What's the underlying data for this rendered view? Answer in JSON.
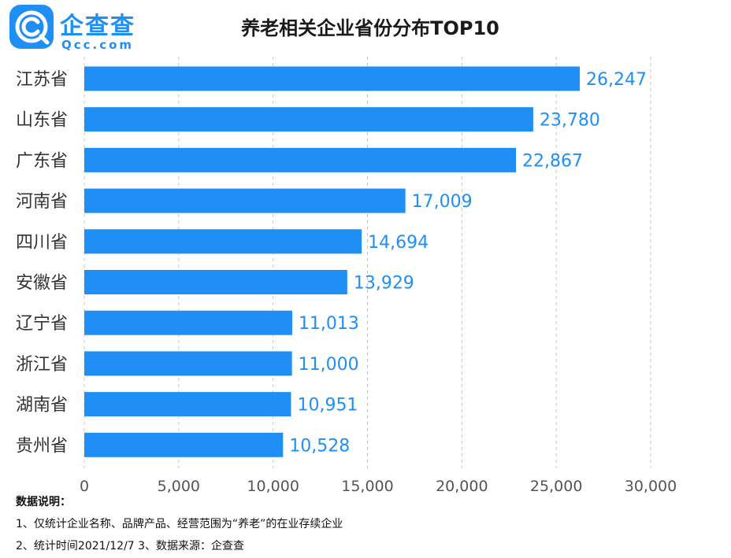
{
  "logo": {
    "name": "企查查",
    "domain": "Qcc.com",
    "icon": "qcc-logo-icon"
  },
  "chart_data": {
    "type": "bar",
    "orientation": "horizontal",
    "title": "养老相关企业省份分布TOP10",
    "categories": [
      "江苏省",
      "山东省",
      "广东省",
      "河南省",
      "四川省",
      "安徽省",
      "辽宁省",
      "浙江省",
      "湖南省",
      "贵州省"
    ],
    "values": [
      26247,
      23780,
      22867,
      17009,
      14694,
      13929,
      11013,
      11000,
      10951,
      10528
    ],
    "value_labels": [
      "26,247",
      "23,780",
      "22,867",
      "17,009",
      "14,694",
      "13,929",
      "11,013",
      "11,000",
      "10,951",
      "10,528"
    ],
    "xlim": [
      0,
      30000
    ],
    "x_ticks": [
      0,
      5000,
      10000,
      15000,
      20000,
      25000,
      30000
    ],
    "x_tick_labels": [
      "0",
      "5,000",
      "10,000",
      "15,000",
      "20,000",
      "25,000",
      "30,000"
    ],
    "grid": "vertical dashed",
    "bar_color": "#1f8ff5",
    "label_color": "#1f8ff5",
    "grid_color": "#c8c8c8",
    "axis_label_color": "#555555"
  },
  "notes": {
    "title": "数据说明：",
    "line1": "1、仅统计企业名称、品牌产品、经营范围为“养老”的在业存续企业",
    "line2": "2、统计时间2021/12/7   3、数据来源：企查查"
  }
}
